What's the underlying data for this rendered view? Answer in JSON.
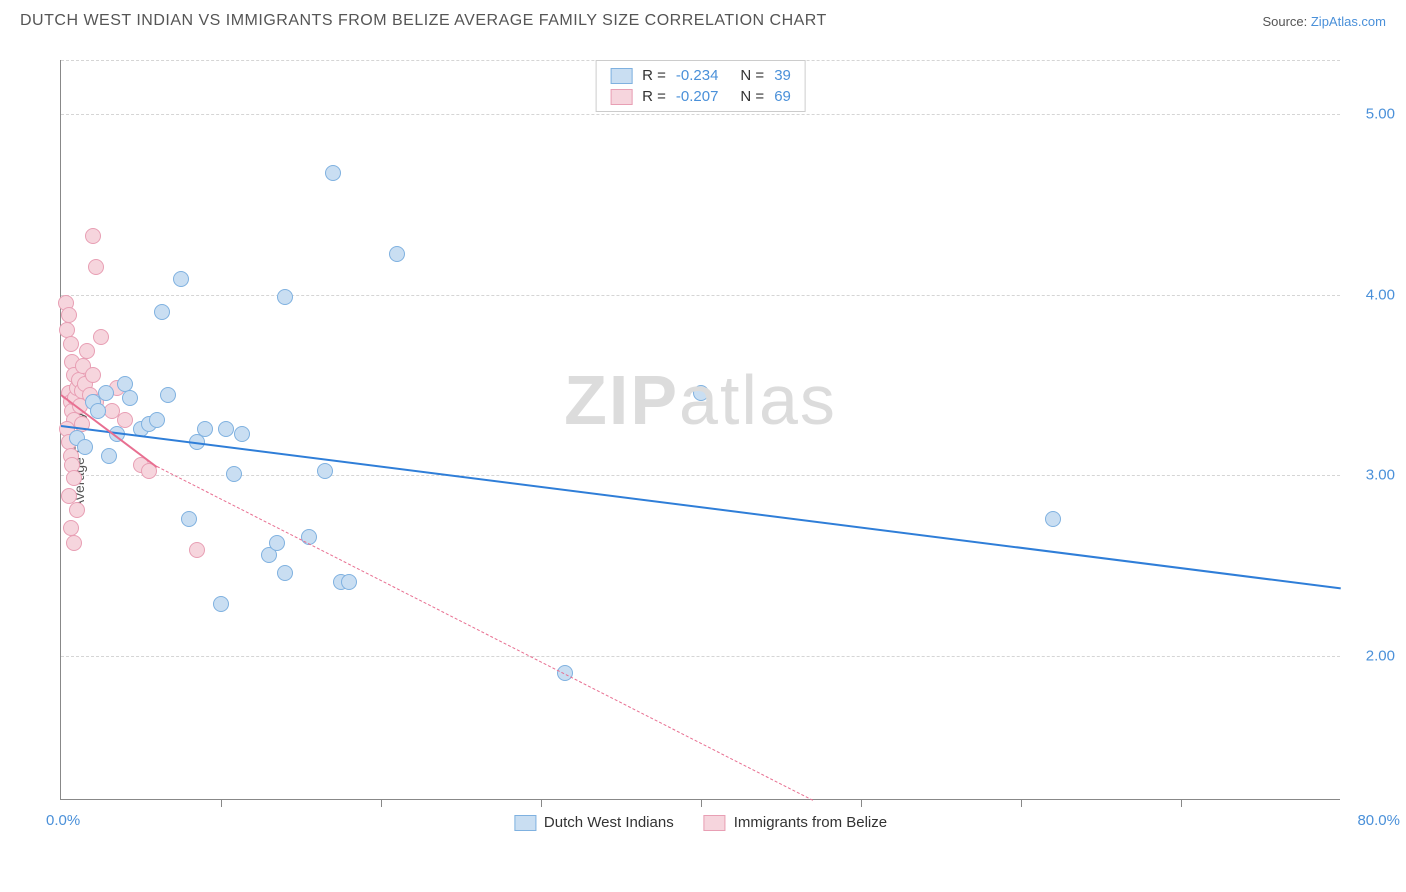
{
  "header": {
    "title": "DUTCH WEST INDIAN VS IMMIGRANTS FROM BELIZE AVERAGE FAMILY SIZE CORRELATION CHART",
    "source_prefix": "Source: ",
    "source_link": "ZipAtlas.com"
  },
  "chart": {
    "type": "scatter",
    "ylabel": "Average Family Size",
    "xlim": [
      0,
      80
    ],
    "ylim": [
      1.2,
      5.3
    ],
    "x_min_label": "0.0%",
    "x_max_label": "80.0%",
    "xtick_positions": [
      10,
      20,
      30,
      40,
      50,
      60,
      70
    ],
    "yticks": [
      2.0,
      3.0,
      4.0,
      5.0
    ],
    "ytick_labels": [
      "2.00",
      "3.00",
      "4.00",
      "5.00"
    ],
    "grid_color": "#d5d5d5",
    "background_color": "#ffffff",
    "watermark": "ZIPatlas",
    "series": [
      {
        "name": "Dutch West Indians",
        "marker_fill": "#c9def2",
        "marker_stroke": "#7fb1e0",
        "marker_size": 16,
        "line_color": "#2f7ed8",
        "line_style": "solid",
        "line_width": 2,
        "R": "-0.234",
        "N": "39",
        "trend": {
          "x1": 0,
          "y1": 3.28,
          "x2": 80,
          "y2": 2.38
        },
        "points": [
          [
            1.0,
            3.2
          ],
          [
            1.5,
            3.15
          ],
          [
            2.0,
            3.4
          ],
          [
            2.3,
            3.35
          ],
          [
            2.8,
            3.45
          ],
          [
            3.0,
            3.1
          ],
          [
            3.5,
            3.22
          ],
          [
            4.0,
            3.5
          ],
          [
            4.3,
            3.42
          ],
          [
            5.0,
            3.25
          ],
          [
            5.5,
            3.28
          ],
          [
            6.0,
            3.3
          ],
          [
            6.3,
            3.9
          ],
          [
            6.7,
            3.44
          ],
          [
            7.5,
            4.08
          ],
          [
            8.0,
            2.75
          ],
          [
            8.5,
            3.18
          ],
          [
            9.0,
            3.25
          ],
          [
            10.3,
            3.25
          ],
          [
            10.8,
            3.0
          ],
          [
            10.0,
            2.28
          ],
          [
            11.3,
            3.22
          ],
          [
            13.0,
            2.55
          ],
          [
            13.5,
            2.62
          ],
          [
            14.0,
            2.45
          ],
          [
            14.0,
            3.98
          ],
          [
            15.5,
            2.65
          ],
          [
            16.5,
            3.02
          ],
          [
            17.0,
            4.67
          ],
          [
            17.5,
            2.4
          ],
          [
            18.0,
            2.4
          ],
          [
            21.0,
            4.22
          ],
          [
            31.5,
            1.9
          ],
          [
            40.0,
            3.45
          ],
          [
            62.0,
            2.75
          ]
        ]
      },
      {
        "name": "Immigrants from Belize",
        "marker_fill": "#f6d5dd",
        "marker_stroke": "#e89fb4",
        "marker_size": 16,
        "line_color": "#e86f91",
        "line_style": "solid_then_dashed",
        "line_width": 2,
        "R": "-0.207",
        "N": "69",
        "trend_solid": {
          "x1": 0,
          "y1": 3.45,
          "x2": 6.0,
          "y2": 3.05
        },
        "trend_dashed": {
          "x1": 6.0,
          "y1": 3.05,
          "x2": 47,
          "y2": 1.2
        },
        "points": [
          [
            0.3,
            3.95
          ],
          [
            0.4,
            3.8
          ],
          [
            0.5,
            3.88
          ],
          [
            0.6,
            3.72
          ],
          [
            0.7,
            3.62
          ],
          [
            0.8,
            3.55
          ],
          [
            0.5,
            3.45
          ],
          [
            0.6,
            3.4
          ],
          [
            0.7,
            3.35
          ],
          [
            0.8,
            3.3
          ],
          [
            0.9,
            3.42
          ],
          [
            1.0,
            3.48
          ],
          [
            1.1,
            3.52
          ],
          [
            1.2,
            3.38
          ],
          [
            1.3,
            3.46
          ],
          [
            0.4,
            3.25
          ],
          [
            0.5,
            3.18
          ],
          [
            0.6,
            3.1
          ],
          [
            0.7,
            3.05
          ],
          [
            0.8,
            2.98
          ],
          [
            0.5,
            2.88
          ],
          [
            0.6,
            2.7
          ],
          [
            0.8,
            2.62
          ],
          [
            1.4,
            3.6
          ],
          [
            1.5,
            3.5
          ],
          [
            1.6,
            3.68
          ],
          [
            1.8,
            3.44
          ],
          [
            2.0,
            3.55
          ],
          [
            2.2,
            3.4
          ],
          [
            2.5,
            3.76
          ],
          [
            2.0,
            4.32
          ],
          [
            2.2,
            4.15
          ],
          [
            3.2,
            3.35
          ],
          [
            3.5,
            3.48
          ],
          [
            4.0,
            3.3
          ],
          [
            5.0,
            3.05
          ],
          [
            5.5,
            3.02
          ],
          [
            8.5,
            2.58
          ],
          [
            1.0,
            2.8
          ],
          [
            1.3,
            3.28
          ]
        ]
      }
    ]
  },
  "legend_bottom": [
    {
      "label": "Dutch West Indians",
      "fill": "#c9def2",
      "stroke": "#7fb1e0"
    },
    {
      "label": "Immigrants from Belize",
      "fill": "#f6d5dd",
      "stroke": "#e89fb4"
    }
  ]
}
